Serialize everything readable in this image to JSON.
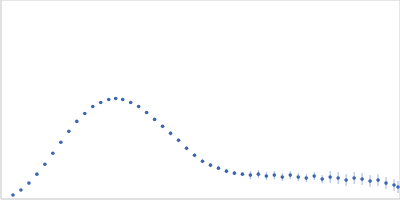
{
  "chart_data": {
    "type": "scatter",
    "color": "#3a66b5",
    "marker": "circle",
    "grid": true,
    "tick_labels": false,
    "xlim": [
      0,
      8
    ],
    "ylim": [
      0,
      2
    ],
    "xticks": [
      2.3
    ],
    "yticks": [
      1
    ],
    "x": [
      0.24,
      0.4,
      0.56,
      0.72,
      0.88,
      1.04,
      1.2,
      1.36,
      1.52,
      1.68,
      1.84,
      2.0,
      2.16,
      2.3,
      2.44,
      2.6,
      2.76,
      2.92,
      3.08,
      3.24,
      3.4,
      3.56,
      3.72,
      3.88,
      4.04,
      4.2,
      4.36,
      4.52,
      4.68,
      4.84,
      5.0,
      5.16,
      5.32,
      5.48,
      5.64,
      5.8,
      5.96,
      6.12,
      6.28,
      6.44,
      6.6,
      6.76,
      6.92,
      7.08,
      7.24,
      7.4,
      7.56,
      7.72,
      7.88,
      7.96
    ],
    "values": [
      0.04,
      0.09,
      0.16,
      0.25,
      0.35,
      0.46,
      0.57,
      0.68,
      0.78,
      0.86,
      0.93,
      0.97,
      1.0,
      1.01,
      1.0,
      0.97,
      0.93,
      0.87,
      0.8,
      0.73,
      0.66,
      0.59,
      0.51,
      0.44,
      0.38,
      0.34,
      0.31,
      0.28,
      0.26,
      0.25,
      0.24,
      0.25,
      0.23,
      0.24,
      0.22,
      0.24,
      0.22,
      0.21,
      0.23,
      0.2,
      0.22,
      0.21,
      0.19,
      0.21,
      0.2,
      0.18,
      0.19,
      0.16,
      0.14,
      0.12
    ],
    "errors": [
      0.005,
      0.005,
      0.005,
      0.005,
      0.005,
      0.005,
      0.005,
      0.005,
      0.005,
      0.005,
      0.005,
      0.005,
      0.01,
      0.01,
      0.01,
      0.01,
      0.01,
      0.01,
      0.01,
      0.01,
      0.02,
      0.02,
      0.02,
      0.02,
      0.02,
      0.02,
      0.02,
      0.02,
      0.02,
      0.02,
      0.04,
      0.04,
      0.04,
      0.04,
      0.04,
      0.04,
      0.04,
      0.04,
      0.04,
      0.04,
      0.06,
      0.06,
      0.06,
      0.06,
      0.06,
      0.06,
      0.06,
      0.06,
      0.06,
      0.06
    ]
  }
}
